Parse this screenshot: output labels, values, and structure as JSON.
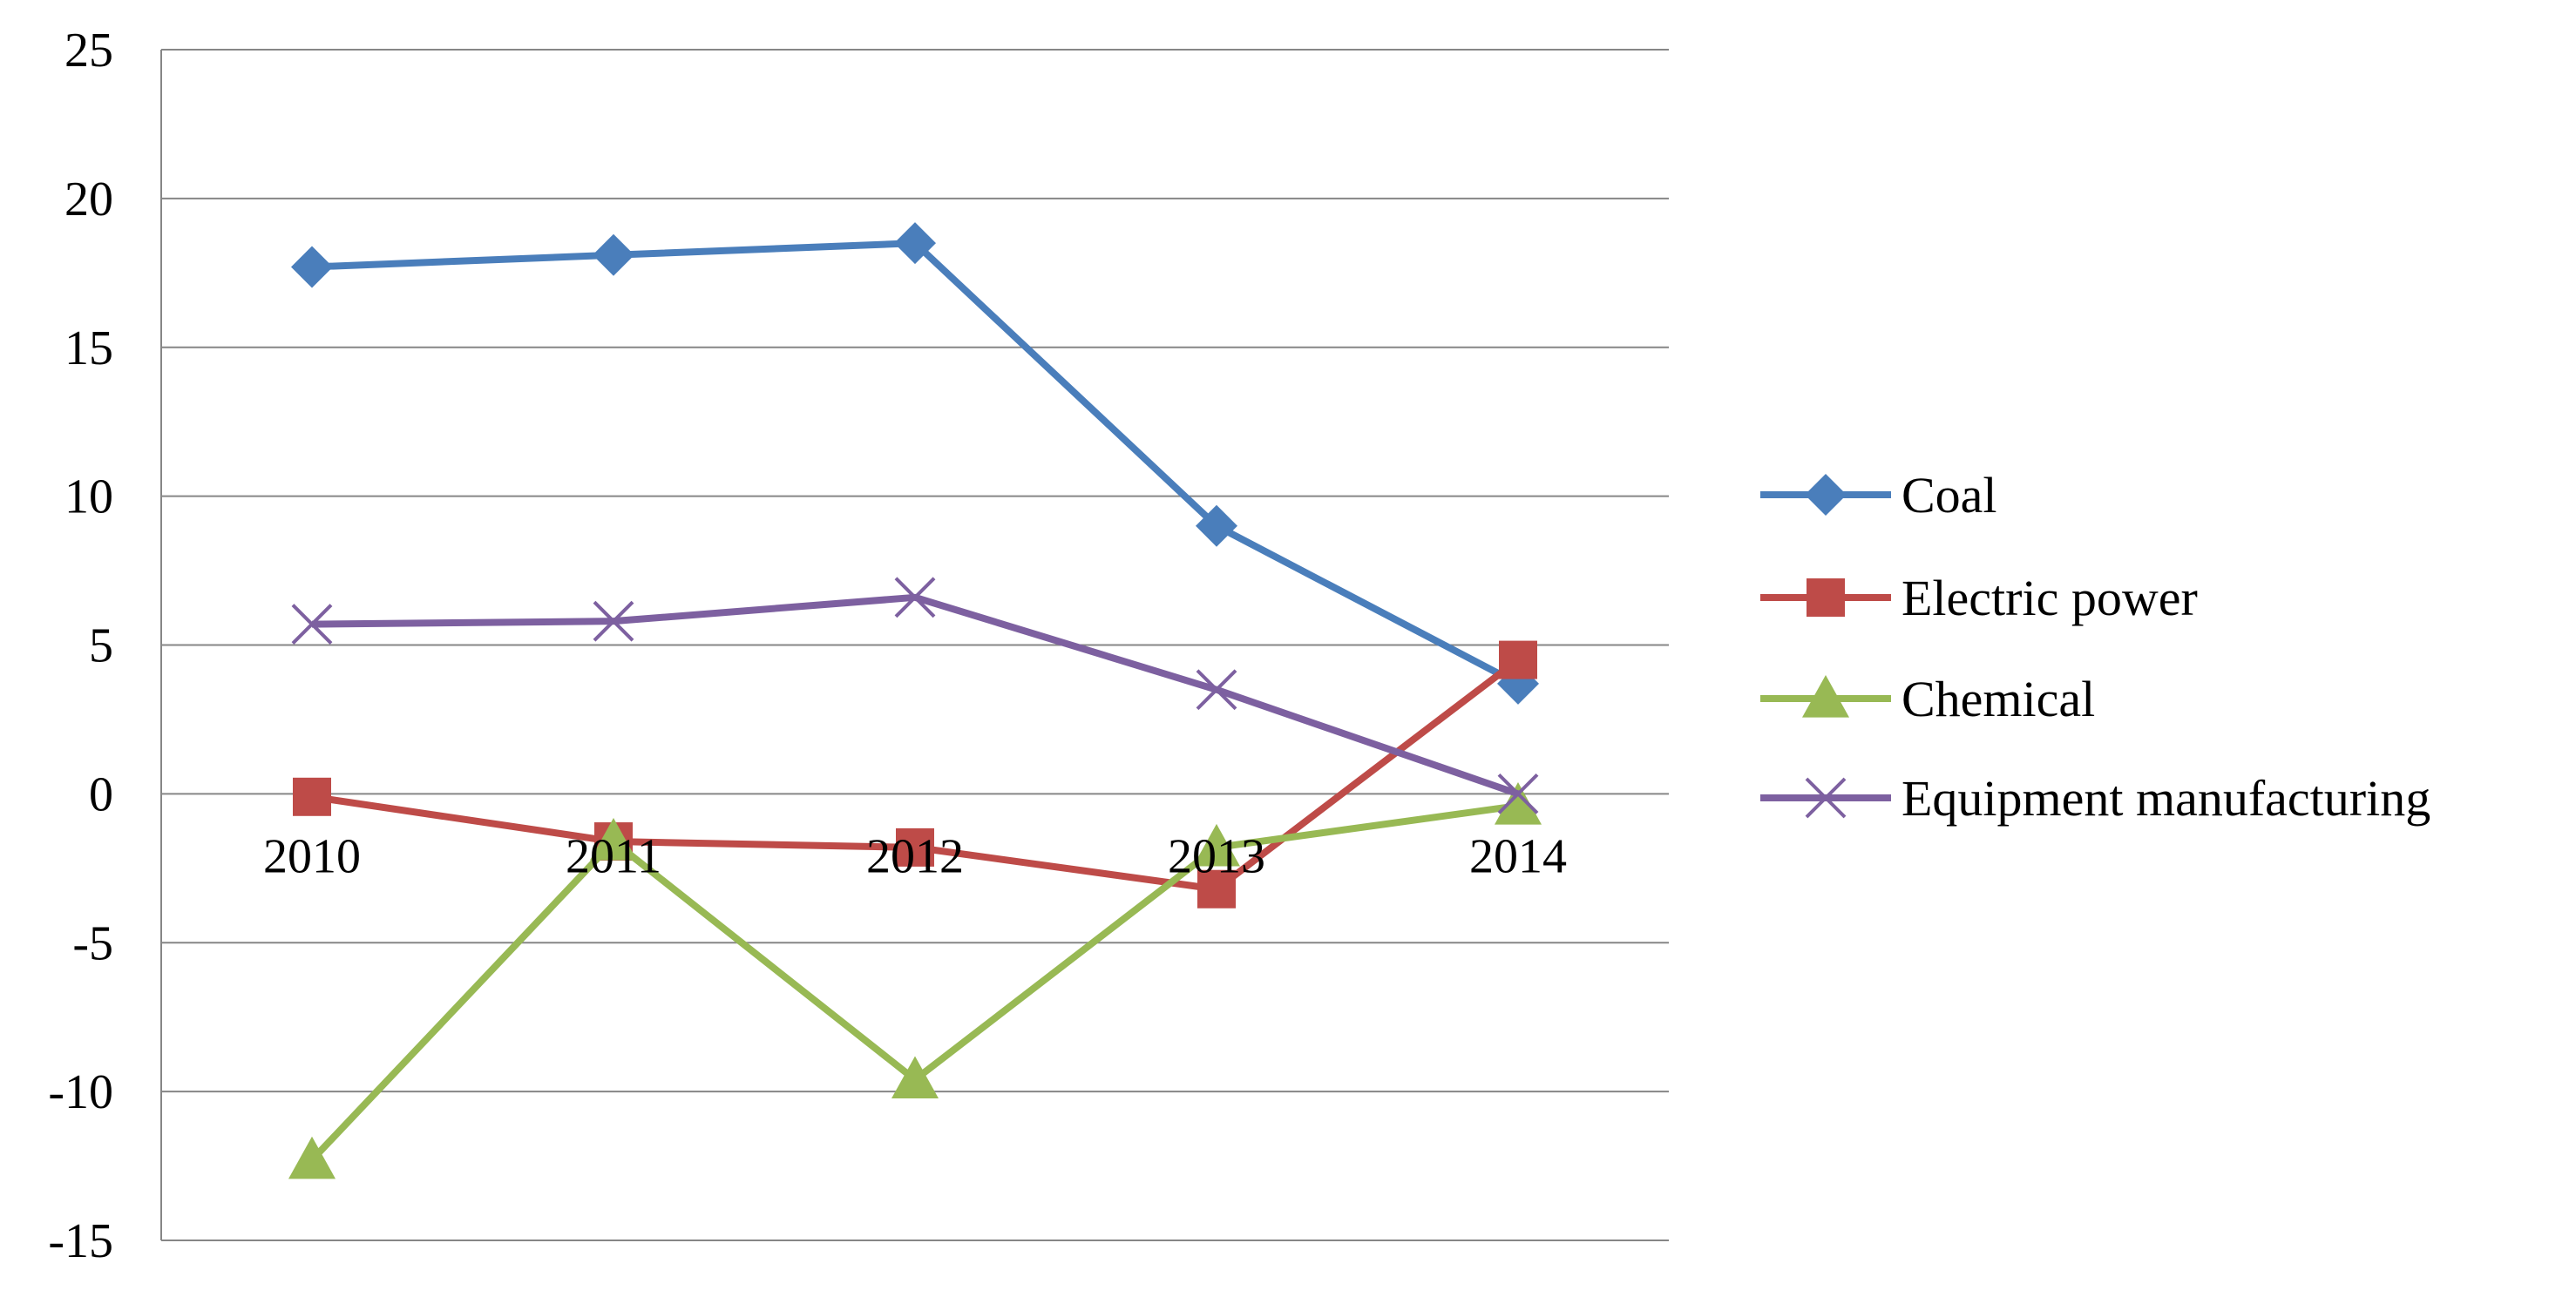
{
  "chart_data": {
    "type": "line",
    "title": "",
    "xlabel": "",
    "ylabel": "",
    "categories": [
      "2010",
      "2011",
      "2012",
      "2013",
      "2014"
    ],
    "ylim": [
      -15,
      25
    ],
    "yticks": [
      25,
      20,
      15,
      10,
      5,
      0,
      -5,
      -10,
      -15
    ],
    "grid": true,
    "legend": "right",
    "series": [
      {
        "name": "Coal",
        "color": "#4a7ebb",
        "marker": "diamond",
        "values": [
          17.7,
          18.1,
          18.5,
          9.0,
          3.7
        ]
      },
      {
        "name": "Electric power",
        "color": "#be4b48",
        "marker": "square",
        "values": [
          -0.1,
          -1.6,
          -1.8,
          -3.2,
          4.5
        ]
      },
      {
        "name": "Chemical",
        "color": "#98b954",
        "marker": "triangle",
        "values": [
          -12.3,
          -1.6,
          -9.6,
          -1.8,
          -0.4
        ]
      },
      {
        "name": "Equipment manufacturing",
        "color": "#7d60a0",
        "marker": "x",
        "values": [
          5.7,
          5.8,
          6.6,
          3.5,
          0.0
        ]
      }
    ]
  }
}
